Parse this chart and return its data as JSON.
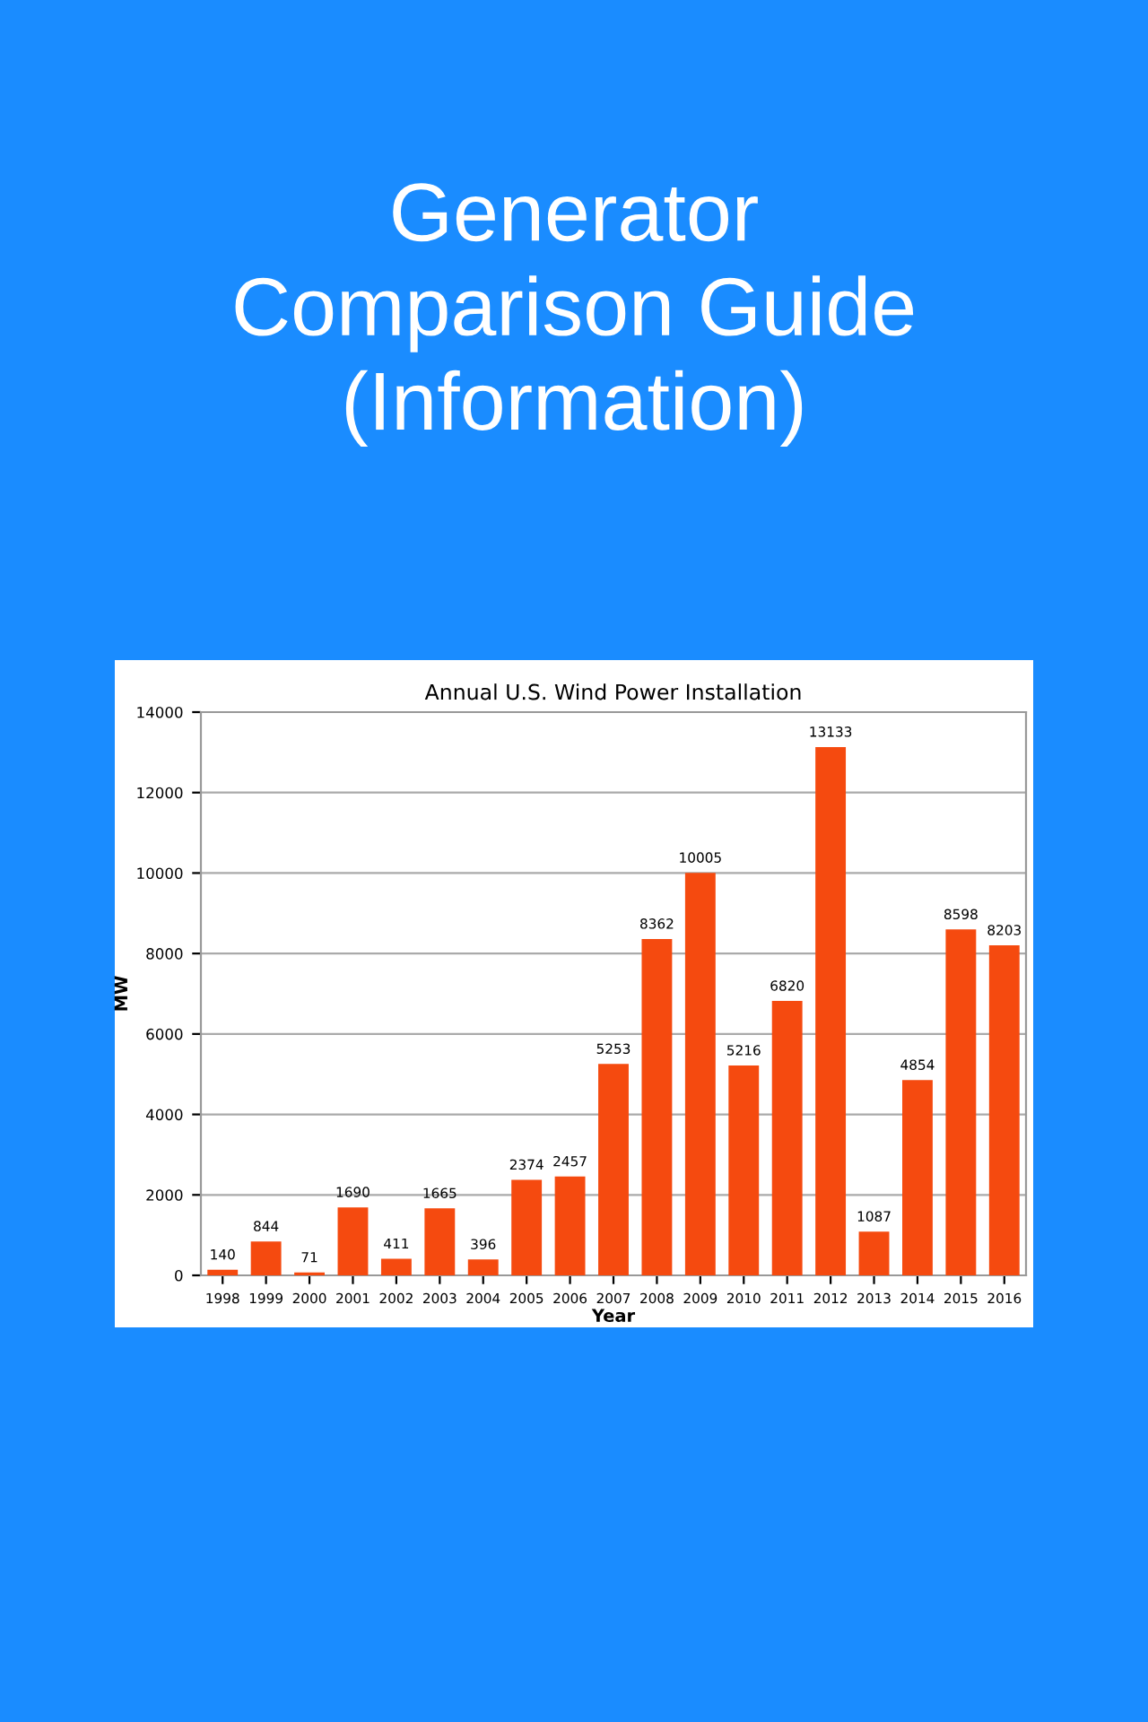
{
  "chart_data": {
    "type": "bar",
    "title": "Generator\nComparison Guide\n(Information)",
    "subtitle": "Annual U.S. Wind Power Installation",
    "xlabel": "Year",
    "ylabel": "MW",
    "categories": [
      "1998",
      "1999",
      "2000",
      "2001",
      "2002",
      "2003",
      "2004",
      "2005",
      "2006",
      "2007",
      "2008",
      "2009",
      "2010",
      "2011",
      "2012",
      "2013",
      "2014",
      "2015",
      "2016"
    ],
    "values": [
      140,
      844,
      71,
      1690,
      411,
      1665,
      396,
      2374,
      2457,
      5253,
      8362,
      10005,
      5216,
      6820,
      13133,
      1087,
      4854,
      8598,
      8203
    ],
    "color": "#f54a0f",
    "ylim": [
      0,
      14000
    ],
    "yticks": [
      0,
      2000,
      4000,
      6000,
      8000,
      10000,
      12000,
      14000
    ],
    "grid": "y",
    "data_labels": true
  }
}
